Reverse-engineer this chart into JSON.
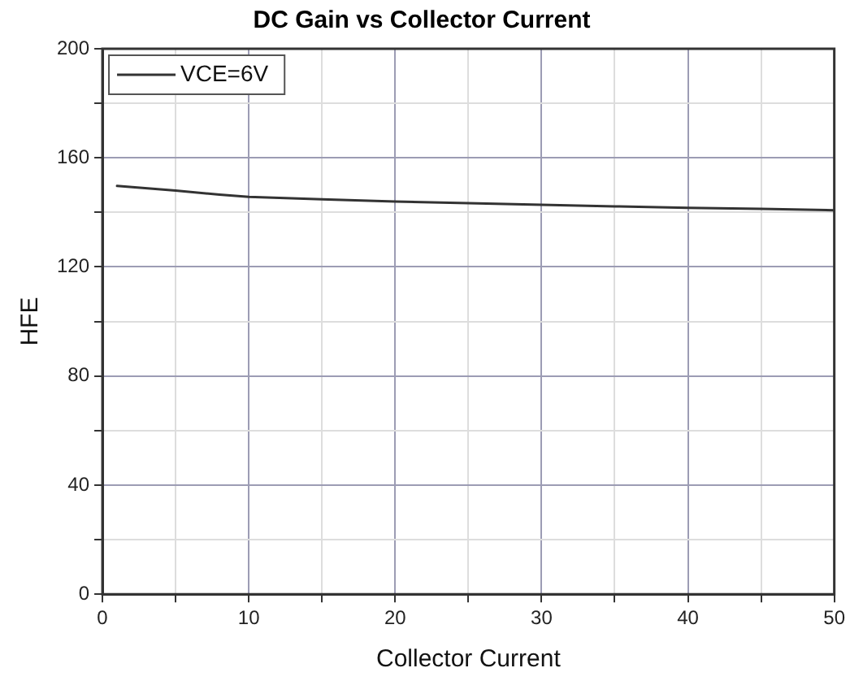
{
  "chart_data": {
    "type": "line",
    "title": "DC Gain vs Collector Current",
    "xlabel": "Collector Current",
    "ylabel": "HFE",
    "series": [
      {
        "name": "VCE=6V",
        "color": "#333333",
        "x": [
          1,
          5,
          8,
          10,
          15,
          20,
          25,
          30,
          35,
          40,
          45,
          50
        ],
        "values": [
          149.7,
          148,
          146.5,
          145.7,
          144.8,
          144,
          143.4,
          142.8,
          142.2,
          141.7,
          141.3,
          140.8
        ]
      }
    ],
    "xlim": [
      0,
      50
    ],
    "xticks": [
      0,
      {
        "value": 5,
        "label": null
      },
      10,
      {
        "value": 15,
        "label": null
      },
      20,
      {
        "value": 25,
        "label": null
      },
      30,
      {
        "value": 35,
        "label": null
      },
      40,
      {
        "value": 45,
        "label": null
      },
      50
    ],
    "ylim": [
      0,
      200
    ],
    "yticks": [
      0,
      {
        "value": 20,
        "label": null
      },
      40,
      {
        "value": 60,
        "label": null
      },
      80,
      {
        "value": 100,
        "label": null
      },
      120,
      {
        "value": 140,
        "label": null
      },
      160,
      {
        "value": 180,
        "label": null
      },
      200
    ],
    "grid": true,
    "legend": "top left",
    "marker": "none",
    "line_style": "solid"
  }
}
